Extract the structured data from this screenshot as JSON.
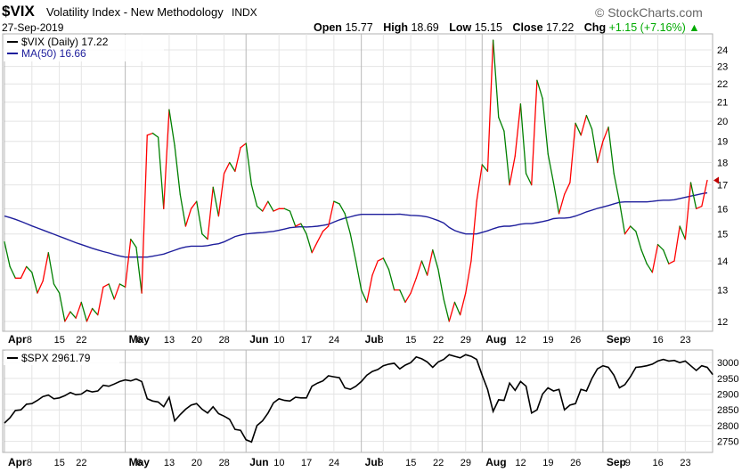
{
  "header": {
    "ticker": "$VIX",
    "name": "Volatility Index - New Methodology",
    "exchange": "INDX",
    "date": "27-Sep-2019",
    "brand": "© StockCharts.com",
    "open_label": "Open",
    "open": "15.77",
    "high_label": "High",
    "high": "18.69",
    "low_label": "Low",
    "low": "15.15",
    "close_label": "Close",
    "close": "17.22",
    "chg_label": "Chg",
    "chg": "+1.15 (+7.16%)",
    "chg_icon": "up-triangle-icon",
    "colors": {
      "up": "#00aa00",
      "brand": "#666666"
    }
  },
  "chart_data": [
    {
      "type": "line",
      "panel": "top",
      "legend": [
        "$VIX (Daily) 17.22",
        "MA(50) 16.66"
      ],
      "y_scale": "log",
      "ylim": [
        11.7,
        25
      ],
      "y_ticks": [
        12,
        13,
        14,
        15,
        16,
        17,
        18,
        19,
        20,
        21,
        22,
        23,
        24
      ],
      "x_ticks": [
        {
          "label": "Apr",
          "major": true,
          "i": 0
        },
        {
          "label": "8",
          "i": 5
        },
        {
          "label": "15",
          "i": 10
        },
        {
          "label": "22",
          "i": 14
        },
        {
          "label": "May",
          "major": true,
          "i": 22
        },
        {
          "label": "6",
          "i": 25
        },
        {
          "label": "13",
          "i": 30
        },
        {
          "label": "20",
          "i": 35
        },
        {
          "label": "28",
          "i": 40
        },
        {
          "label": "Jun",
          "major": true,
          "i": 44
        },
        {
          "label": "10",
          "i": 50
        },
        {
          "label": "17",
          "i": 55
        },
        {
          "label": "24",
          "i": 60
        },
        {
          "label": "Jul",
          "major": true,
          "i": 65
        },
        {
          "label": "8",
          "i": 69
        },
        {
          "label": "15",
          "i": 74
        },
        {
          "label": "22",
          "i": 79
        },
        {
          "label": "29",
          "i": 84
        },
        {
          "label": "Aug",
          "major": true,
          "i": 87
        },
        {
          "label": "12",
          "i": 94
        },
        {
          "label": "19",
          "i": 99
        },
        {
          "label": "26",
          "i": 104
        },
        {
          "label": "Sep",
          "major": true,
          "i": 109
        },
        {
          "label": "9",
          "i": 114
        },
        {
          "label": "16",
          "i": 119
        },
        {
          "label": "23",
          "i": 124
        }
      ],
      "colors": {
        "up": "#ff0000",
        "down": "#008000",
        "ma": "#1e1e9c"
      },
      "series": [
        {
          "name": "$VIX (Daily)",
          "values": [
            14.7,
            13.8,
            13.4,
            13.4,
            13.8,
            13.6,
            12.9,
            13.3,
            14.3,
            13.2,
            12.9,
            12.0,
            12.3,
            12.1,
            12.6,
            12.0,
            12.4,
            12.2,
            13.1,
            13.2,
            12.7,
            13.2,
            13.1,
            14.8,
            14.5,
            12.9,
            19.3,
            19.4,
            19.2,
            16.0,
            20.6,
            18.8,
            16.6,
            15.3,
            16.0,
            16.3,
            15.0,
            14.8,
            16.9,
            15.7,
            17.5,
            18.0,
            17.6,
            18.7,
            18.9,
            17.0,
            16.1,
            15.9,
            16.3,
            15.9,
            16.0,
            16.0,
            15.9,
            15.3,
            15.4,
            15.0,
            14.3,
            14.7,
            15.1,
            15.3,
            16.3,
            16.2,
            15.8,
            15.0,
            14.0,
            13.0,
            12.6,
            13.5,
            14.0,
            14.1,
            13.7,
            13.0,
            13.0,
            12.6,
            12.9,
            13.4,
            14.0,
            13.5,
            14.4,
            13.7,
            12.7,
            12.0,
            12.6,
            12.2,
            12.9,
            14.0,
            16.3,
            17.9,
            17.6,
            24.6,
            20.2,
            19.5,
            17.0,
            18.3,
            20.9,
            17.5,
            17.0,
            22.2,
            21.2,
            18.4,
            17.1,
            15.8,
            16.6,
            17.1,
            19.9,
            19.3,
            20.3,
            19.6,
            18.0,
            19.0,
            19.7,
            17.5,
            16.3,
            15.0,
            15.3,
            15.1,
            14.4,
            13.9,
            13.6,
            14.6,
            14.4,
            13.9,
            14.0,
            15.3,
            14.8,
            17.1,
            16.0,
            16.1,
            17.2
          ]
        },
        {
          "name": "MA(50)",
          "values": [
            15.7,
            15.64,
            15.57,
            15.49,
            15.4,
            15.31,
            15.23,
            15.15,
            15.07,
            14.99,
            14.91,
            14.83,
            14.75,
            14.67,
            14.6,
            14.53,
            14.46,
            14.4,
            14.34,
            14.29,
            14.23,
            14.18,
            14.14,
            14.14,
            14.14,
            14.14,
            14.14,
            14.17,
            14.21,
            14.25,
            14.32,
            14.39,
            14.46,
            14.51,
            14.54,
            14.54,
            14.54,
            14.56,
            14.6,
            14.63,
            14.7,
            14.8,
            14.9,
            14.96,
            15.0,
            15.02,
            15.04,
            15.05,
            15.08,
            15.1,
            15.14,
            15.19,
            15.24,
            15.26,
            15.28,
            15.27,
            15.28,
            15.3,
            15.33,
            15.37,
            15.46,
            15.55,
            15.62,
            15.67,
            15.73,
            15.77,
            15.77,
            15.77,
            15.77,
            15.77,
            15.77,
            15.77,
            15.78,
            15.75,
            15.73,
            15.72,
            15.7,
            15.67,
            15.6,
            15.52,
            15.43,
            15.25,
            15.13,
            15.06,
            15.0,
            15.0,
            15.0,
            15.06,
            15.12,
            15.2,
            15.27,
            15.3,
            15.3,
            15.33,
            15.38,
            15.4,
            15.4,
            15.44,
            15.48,
            15.53,
            15.6,
            15.62,
            15.62,
            15.64,
            15.7,
            15.78,
            15.87,
            15.94,
            16.01,
            16.07,
            16.13,
            16.2,
            16.26,
            16.28,
            16.28,
            16.28,
            16.28,
            16.28,
            16.3,
            16.33,
            16.35,
            16.35,
            16.37,
            16.42,
            16.47,
            16.52,
            16.57,
            16.62,
            16.66
          ]
        }
      ]
    },
    {
      "type": "line",
      "panel": "bottom",
      "legend": [
        "$SPX 2961.79"
      ],
      "ylim": [
        2715,
        3040
      ],
      "y_ticks": [
        2750,
        2800,
        2850,
        2900,
        2950,
        3000
      ],
      "colors": {
        "line": "#000000"
      },
      "series": [
        {
          "name": "$SPX",
          "values": [
            2808,
            2825,
            2848,
            2850,
            2868,
            2870,
            2880,
            2892,
            2897,
            2885,
            2888,
            2895,
            2905,
            2898,
            2900,
            2912,
            2907,
            2910,
            2928,
            2925,
            2932,
            2940,
            2945,
            2942,
            2948,
            2940,
            2885,
            2878,
            2875,
            2860,
            2890,
            2815,
            2835,
            2852,
            2865,
            2870,
            2852,
            2840,
            2860,
            2838,
            2830,
            2820,
            2788,
            2785,
            2755,
            2748,
            2800,
            2815,
            2840,
            2872,
            2885,
            2880,
            2878,
            2890,
            2888,
            2888,
            2925,
            2935,
            2942,
            2958,
            2955,
            2952,
            2920,
            2915,
            2925,
            2940,
            2960,
            2972,
            2978,
            2990,
            2995,
            2998,
            2980,
            2992,
            3000,
            3018,
            3012,
            3002,
            2985,
            3002,
            3010,
            3025,
            3020,
            3015,
            3025,
            3020,
            3010,
            2960,
            2915,
            2845,
            2882,
            2880,
            2935,
            2912,
            2940,
            2925,
            2840,
            2850,
            2900,
            2920,
            2910,
            2915,
            2850,
            2865,
            2870,
            2915,
            2910,
            2950,
            2980,
            2990,
            2985,
            2960,
            2920,
            2930,
            2955,
            2985,
            2987,
            2990,
            2995,
            3005,
            3010,
            3005,
            3007,
            3000,
            3005,
            2990,
            2975,
            2990,
            2985,
            2962
          ]
        }
      ]
    }
  ]
}
